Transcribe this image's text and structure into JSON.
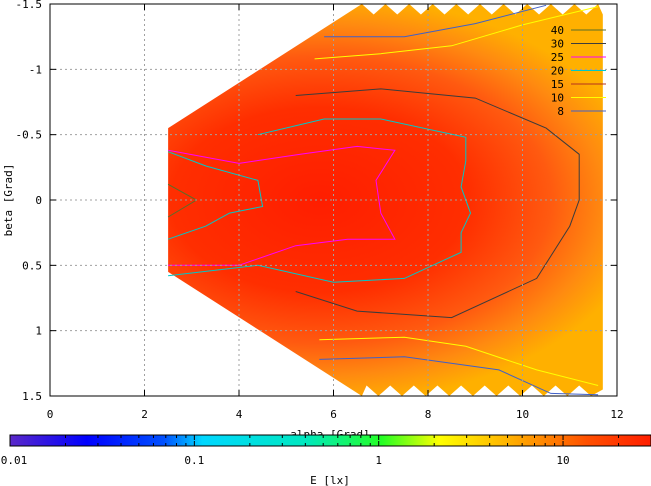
{
  "chart_data": {
    "type": "heatmap",
    "title": "",
    "xlabel": "alpha [Grad]",
    "ylabel": "beta [Grad]",
    "xlim": [
      0,
      12
    ],
    "ylim": [
      -1.5,
      1.5
    ],
    "y_axis_inverted": true,
    "grid": true,
    "x_ticks": [
      "0",
      "2",
      "4",
      "6",
      "8",
      "10",
      "12"
    ],
    "y_ticks": [
      "-1.5",
      "-1",
      "-0.5",
      "0",
      "0.5",
      "1",
      "1.5"
    ],
    "colorbar": {
      "label": "E [lx]",
      "scale": "log",
      "range": [
        0.01,
        30
      ],
      "ticks": [
        "0.01",
        "0.1",
        "1",
        "10"
      ],
      "colors": [
        "#5a28c8",
        "#0000ff",
        "#00d7ff",
        "#24ff24",
        "#ffff00",
        "#ffa000",
        "#ff1e00"
      ]
    },
    "legend_position": "top-right",
    "contour_levels": [
      {
        "level": "40",
        "color": "#5a6e28"
      },
      {
        "level": "30",
        "color": "#3c3c3c"
      },
      {
        "level": "25",
        "color": "#ff00ff"
      },
      {
        "level": "20",
        "color": "#00c8c8"
      },
      {
        "level": "15",
        "color": "#b4321e"
      },
      {
        "level": "10",
        "color": "#ffff00"
      },
      {
        "level": "8",
        "color": "#4060c8"
      }
    ],
    "contours": [
      {
        "level": "40",
        "points": [
          [
            2.5,
            0.13
          ],
          [
            3.1,
            0.0
          ],
          [
            2.5,
            -0.12
          ]
        ]
      },
      {
        "level": "25",
        "points": [
          [
            2.5,
            -0.38
          ],
          [
            4,
            -0.28
          ],
          [
            5.3,
            -0.35
          ],
          [
            6.5,
            -0.41
          ],
          [
            7.3,
            -0.38
          ],
          [
            6.9,
            -0.15
          ],
          [
            7.0,
            0.1
          ],
          [
            7.3,
            0.3
          ],
          [
            6.3,
            0.3
          ],
          [
            5.2,
            0.35
          ],
          [
            4,
            0.5
          ],
          [
            2.5,
            0.5
          ]
        ]
      },
      {
        "level": "20",
        "points": [
          [
            2.5,
            -0.37
          ],
          [
            3.3,
            -0.26
          ],
          [
            4.4,
            -0.15
          ],
          [
            4.5,
            0.05
          ],
          [
            3.8,
            0.1
          ],
          [
            3.3,
            0.2
          ],
          [
            2.5,
            0.3
          ]
        ]
      },
      {
        "level": "20",
        "points": [
          [
            4.4,
            -0.5
          ],
          [
            5.8,
            -0.62
          ],
          [
            7,
            -0.62
          ],
          [
            8.8,
            -0.48
          ],
          [
            8.8,
            -0.3
          ],
          [
            8.7,
            -0.1
          ],
          [
            8.9,
            0.1
          ],
          [
            8.7,
            0.25
          ],
          [
            8.7,
            0.4
          ],
          [
            7.5,
            0.6
          ],
          [
            6,
            0.63
          ],
          [
            4.4,
            0.5
          ],
          [
            2.5,
            0.58
          ]
        ]
      },
      {
        "level": "30",
        "points": [
          [
            5.2,
            -0.8
          ],
          [
            7,
            -0.85
          ],
          [
            9,
            -0.78
          ],
          [
            10.5,
            -0.55
          ],
          [
            11.2,
            -0.35
          ],
          [
            11.2,
            0
          ],
          [
            11.0,
            0.2
          ],
          [
            10.3,
            0.6
          ],
          [
            8.5,
            0.9
          ],
          [
            6.5,
            0.85
          ],
          [
            5.2,
            0.7
          ]
        ]
      },
      {
        "level": "10",
        "points": [
          [
            5.6,
            -1.08
          ],
          [
            7,
            -1.12
          ],
          [
            8.5,
            -1.18
          ],
          [
            10,
            -1.34
          ],
          [
            11.6,
            -1.48
          ]
        ]
      },
      {
        "level": "10",
        "points": [
          [
            5.7,
            1.07
          ],
          [
            7.5,
            1.05
          ],
          [
            8.8,
            1.12
          ],
          [
            10.3,
            1.3
          ],
          [
            11.6,
            1.42
          ]
        ]
      },
      {
        "level": "8",
        "points": [
          [
            5.7,
            1.22
          ],
          [
            7.5,
            1.2
          ],
          [
            9.5,
            1.3
          ],
          [
            10.6,
            1.48
          ],
          [
            11.6,
            1.49
          ]
        ]
      },
      {
        "level": "8",
        "points": [
          [
            5.8,
            -1.25
          ],
          [
            7.5,
            -1.25
          ],
          [
            9,
            -1.35
          ],
          [
            10.5,
            -1.49
          ]
        ]
      }
    ]
  }
}
